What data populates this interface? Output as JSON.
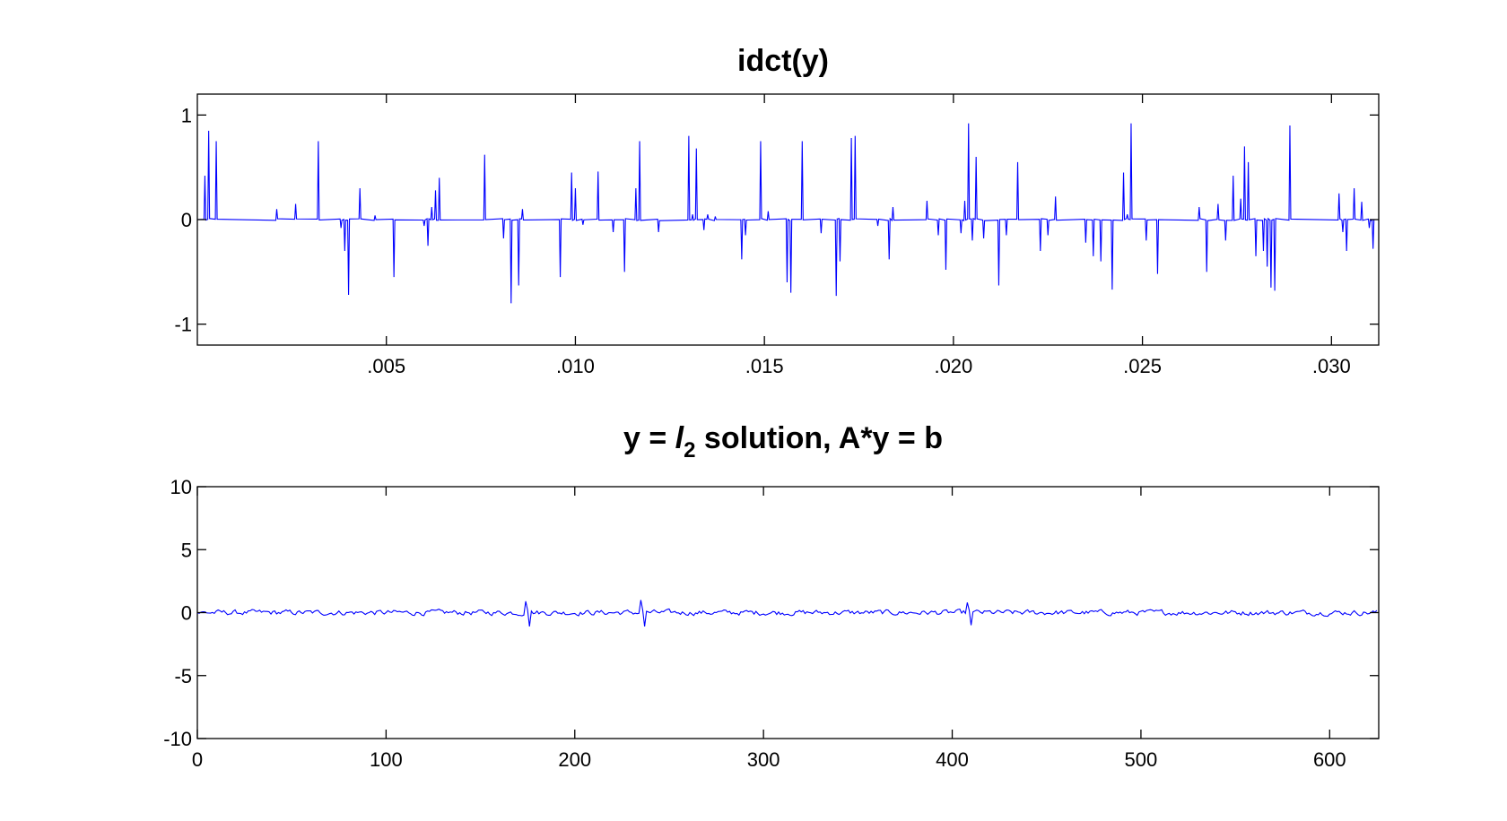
{
  "figure": {
    "background": "#ffffff"
  },
  "chart_data": [
    {
      "type": "line",
      "title": "idct(y)",
      "xlabel": "",
      "ylabel": "",
      "xlim": [
        0,
        0.03125
      ],
      "ylim": [
        -1.2,
        1.2
      ],
      "grid": false,
      "xticks": [
        0.005,
        0.01,
        0.015,
        0.02,
        0.025,
        0.03
      ],
      "xtick_labels": [
        ".005",
        ".010",
        ".015",
        ".020",
        ".025",
        ".030"
      ],
      "yticks": [
        -1,
        0,
        1
      ],
      "ytick_labels": [
        "-1",
        "0",
        "1"
      ],
      "series": [
        {
          "color": "#0000ff",
          "baseline": 0,
          "spikes": [
            [
              0.0002,
              0.42
            ],
            [
              0.0003,
              0.85
            ],
            [
              0.0005,
              0.75
            ],
            [
              0.0021,
              0.1
            ],
            [
              0.0026,
              0.15
            ],
            [
              0.0032,
              0.75
            ],
            [
              0.0038,
              -0.08
            ],
            [
              0.0039,
              -0.3
            ],
            [
              0.004,
              -0.72
            ],
            [
              0.0043,
              0.3
            ],
            [
              0.0047,
              0.04
            ],
            [
              0.0052,
              -0.55
            ],
            [
              0.006,
              -0.06
            ],
            [
              0.0061,
              -0.25
            ],
            [
              0.0062,
              0.12
            ],
            [
              0.0063,
              0.28
            ],
            [
              0.0064,
              0.4
            ],
            [
              0.0076,
              0.62
            ],
            [
              0.0081,
              -0.18
            ],
            [
              0.0083,
              -0.8
            ],
            [
              0.0085,
              -0.63
            ],
            [
              0.0086,
              0.1
            ],
            [
              0.0096,
              -0.55
            ],
            [
              0.0099,
              0.45
            ],
            [
              0.01,
              0.3
            ],
            [
              0.0102,
              -0.05
            ],
            [
              0.0106,
              0.46
            ],
            [
              0.011,
              -0.12
            ],
            [
              0.0113,
              -0.5
            ],
            [
              0.0116,
              0.3
            ],
            [
              0.0117,
              0.75
            ],
            [
              0.0122,
              -0.12
            ],
            [
              0.013,
              0.8
            ],
            [
              0.0131,
              0.05
            ],
            [
              0.0132,
              0.68
            ],
            [
              0.0134,
              -0.1
            ],
            [
              0.0135,
              0.05
            ],
            [
              0.0137,
              0.03
            ],
            [
              0.0144,
              -0.38
            ],
            [
              0.0145,
              -0.15
            ],
            [
              0.0149,
              0.75
            ],
            [
              0.0151,
              0.08
            ],
            [
              0.0156,
              -0.6
            ],
            [
              0.0157,
              -0.7
            ],
            [
              0.016,
              0.75
            ],
            [
              0.0165,
              -0.13
            ],
            [
              0.0169,
              -0.73
            ],
            [
              0.017,
              -0.4
            ],
            [
              0.0173,
              0.78
            ],
            [
              0.0174,
              0.8
            ],
            [
              0.018,
              -0.06
            ],
            [
              0.0183,
              -0.38
            ],
            [
              0.0184,
              0.12
            ],
            [
              0.0193,
              0.18
            ],
            [
              0.0196,
              -0.15
            ],
            [
              0.0198,
              -0.48
            ],
            [
              0.0202,
              -0.13
            ],
            [
              0.0203,
              0.18
            ],
            [
              0.0204,
              0.92
            ],
            [
              0.0205,
              -0.2
            ],
            [
              0.0206,
              0.6
            ],
            [
              0.0208,
              -0.18
            ],
            [
              0.0212,
              -0.63
            ],
            [
              0.0214,
              -0.15
            ],
            [
              0.0217,
              0.55
            ],
            [
              0.0223,
              -0.3
            ],
            [
              0.0225,
              -0.15
            ],
            [
              0.0227,
              0.22
            ],
            [
              0.0235,
              -0.22
            ],
            [
              0.0237,
              -0.35
            ],
            [
              0.0239,
              -0.4
            ],
            [
              0.0242,
              -0.67
            ],
            [
              0.0245,
              0.45
            ],
            [
              0.0246,
              0.05
            ],
            [
              0.0247,
              0.92
            ],
            [
              0.0251,
              -0.2
            ],
            [
              0.0254,
              -0.52
            ],
            [
              0.0265,
              0.12
            ],
            [
              0.0267,
              -0.5
            ],
            [
              0.027,
              0.15
            ],
            [
              0.0272,
              -0.2
            ],
            [
              0.0274,
              0.42
            ],
            [
              0.0276,
              0.2
            ],
            [
              0.0277,
              0.7
            ],
            [
              0.0278,
              0.55
            ],
            [
              0.028,
              -0.35
            ],
            [
              0.0282,
              -0.3
            ],
            [
              0.0283,
              -0.45
            ],
            [
              0.0284,
              -0.65
            ],
            [
              0.0285,
              -0.68
            ],
            [
              0.0289,
              0.9
            ],
            [
              0.0302,
              0.25
            ],
            [
              0.0303,
              -0.12
            ],
            [
              0.0304,
              -0.3
            ],
            [
              0.0306,
              0.3
            ],
            [
              0.0308,
              0.17
            ],
            [
              0.031,
              -0.08
            ],
            [
              0.0311,
              -0.28
            ]
          ]
        }
      ]
    },
    {
      "type": "line",
      "title_parts": [
        "y = ",
        "l",
        "2",
        " solution, A*y = b"
      ],
      "xlabel": "",
      "ylabel": "",
      "xlim": [
        0,
        626
      ],
      "ylim": [
        -10,
        10
      ],
      "grid": false,
      "xticks": [
        0,
        100,
        200,
        300,
        400,
        500,
        600
      ],
      "xtick_labels": [
        "0",
        "100",
        "200",
        "300",
        "400",
        "500",
        "600"
      ],
      "yticks": [
        -10,
        -5,
        0,
        5,
        10
      ],
      "ytick_labels": [
        "-10",
        "-5",
        "0",
        "5",
        "10"
      ],
      "series": [
        {
          "color": "#0000ff",
          "baseline": 0,
          "noise_amplitude": 0.22,
          "n": 626,
          "blips": [
            [
              174,
              0.9,
              -1.1
            ],
            [
              235,
              1.0,
              -1.1
            ],
            [
              408,
              0.8,
              -1.0
            ]
          ]
        }
      ]
    }
  ]
}
